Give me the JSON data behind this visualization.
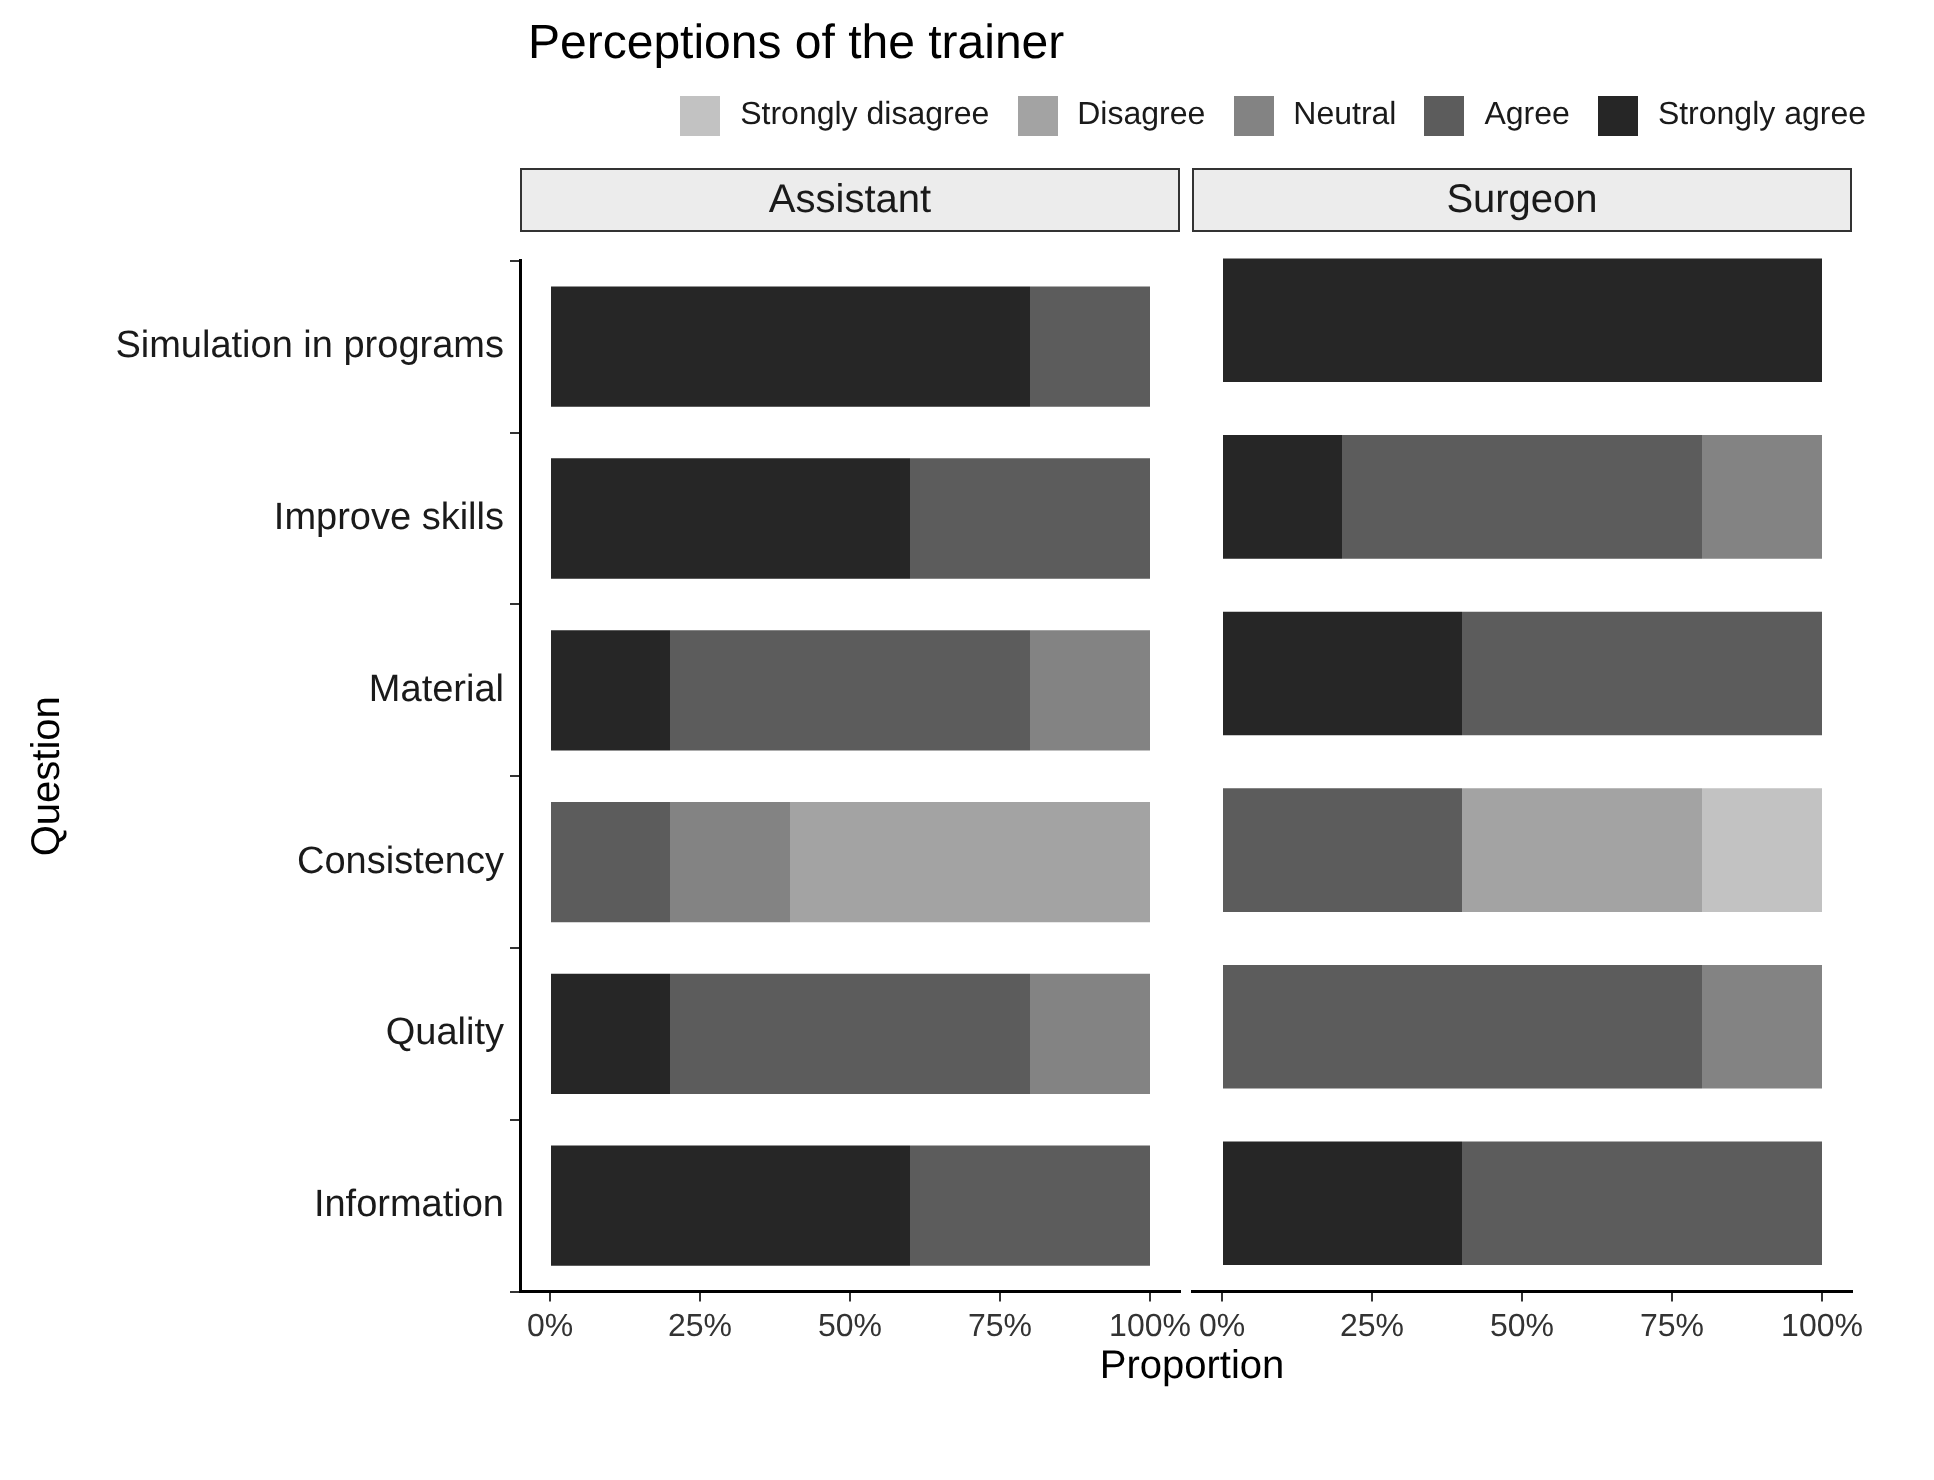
{
  "chart_data": [
    {
      "type": "bar",
      "orientation": "horizontal",
      "stacked": true,
      "title": "Perceptions of the trainer",
      "subtitle": "Assistant",
      "xlabel": "Proportion",
      "ylabel": "Question",
      "legend": "top",
      "grid": false,
      "categories": [
        "Simulation in programs",
        "Improve skills",
        "Material",
        "Consistency",
        "Quality",
        "Information"
      ],
      "xlim": [
        -5,
        105
      ],
      "xticks": [
        {
          "value": 0,
          "label": "0%"
        },
        {
          "value": 25,
          "label": "25%"
        },
        {
          "value": 50,
          "label": "50%"
        },
        {
          "value": 75,
          "label": "75%"
        },
        {
          "value": 100,
          "label": "100%"
        }
      ],
      "series": [
        {
          "name": "Strongly agree",
          "color": "#262626",
          "values": [
            80,
            60,
            20,
            0,
            20,
            60
          ]
        },
        {
          "name": "Agree",
          "color": "#5c5c5c",
          "values": [
            20,
            40,
            60,
            20,
            60,
            40
          ]
        },
        {
          "name": "Neutral",
          "color": "#838383",
          "values": [
            0,
            0,
            20,
            20,
            20,
            0
          ]
        },
        {
          "name": "Disagree",
          "color": "#a3a3a3",
          "values": [
            0,
            0,
            0,
            60,
            0,
            0
          ]
        },
        {
          "name": "Strongly disagree",
          "color": "#c2c2c2",
          "values": [
            0,
            0,
            0,
            0,
            0,
            0
          ]
        }
      ]
    },
    {
      "type": "bar",
      "orientation": "horizontal",
      "stacked": true,
      "subtitle": "Surgeon",
      "grid": false,
      "tick_labels": "x",
      "categories": [
        null,
        null,
        null,
        null,
        null,
        null
      ],
      "xlim": [
        -5,
        105
      ],
      "xticks": [
        {
          "value": 0,
          "label": "0%"
        },
        {
          "value": 25,
          "label": "25%"
        },
        {
          "value": 50,
          "label": "50%"
        },
        {
          "value": 75,
          "label": "75%"
        },
        {
          "value": 100,
          "label": "100%"
        }
      ],
      "series": [
        {
          "color": "#262626",
          "values": [
            100,
            20,
            40,
            0,
            0,
            40
          ]
        },
        {
          "color": "#5c5c5c",
          "values": [
            0,
            60,
            60,
            40,
            80,
            60
          ]
        },
        {
          "color": "#838383",
          "values": [
            0,
            20,
            0,
            0,
            20,
            0
          ]
        },
        {
          "color": "#a3a3a3",
          "values": [
            0,
            0,
            0,
            40,
            0,
            0
          ]
        },
        {
          "color": "#c2c2c2",
          "values": [
            0,
            0,
            0,
            20,
            0,
            0
          ]
        }
      ]
    }
  ]
}
